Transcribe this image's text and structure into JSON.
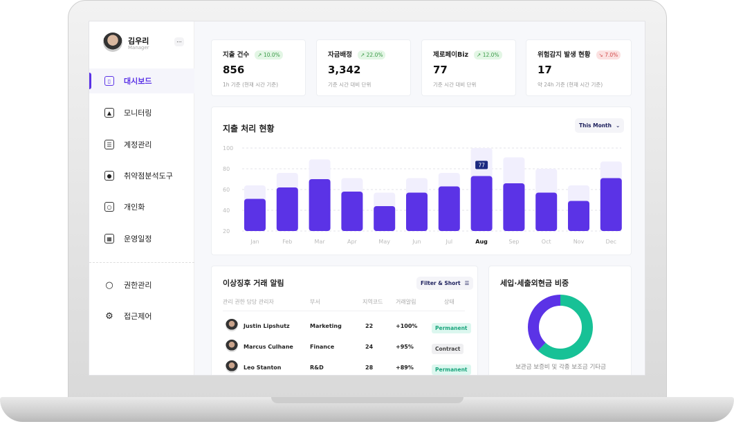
{
  "user": {
    "name": "김우리",
    "role": "Manager",
    "more": "..."
  },
  "sidebar": {
    "items": [
      {
        "label": "대시보드",
        "icon": "dashboard-icon",
        "active": true
      },
      {
        "label": "모니터링",
        "icon": "monitoring-icon"
      },
      {
        "label": "계정관리",
        "icon": "account-card-icon"
      },
      {
        "label": "취약점분석도구",
        "icon": "briefcase-icon"
      },
      {
        "label": "개인화",
        "icon": "user-square-icon"
      },
      {
        "label": "운영일정",
        "icon": "calendar-icon"
      },
      {
        "label": "권한관리",
        "icon": "user-icon"
      },
      {
        "label": "접근제어",
        "icon": "gear-icon"
      }
    ]
  },
  "kpis": [
    {
      "title": "지출 건수",
      "change": "10.0%",
      "trend": "up",
      "value": "856",
      "sub": "1h 기준 (현재 시간 기준)"
    },
    {
      "title": "자금배정",
      "change": "22.0%",
      "trend": "up",
      "value": "3,342",
      "sub": "기준 시간 대비 단위"
    },
    {
      "title": "제로페이Biz",
      "change": "12.0%",
      "trend": "up",
      "value": "77",
      "sub": "기준 시간 대비 단위"
    },
    {
      "title": "위험감지 발생 현황",
      "change": "7.0%",
      "trend": "down",
      "value": "17",
      "sub": "약 24h 기준 (현재 시간 기준)"
    }
  ],
  "colors": {
    "accent": "#5b33e6",
    "bar_bg": "#f1effd",
    "teal": "#17c196",
    "up": "#3a9b47",
    "down": "#d24b4b"
  },
  "chart_data": {
    "type": "bar",
    "title": "지출 처리 현황",
    "filter": "This Month",
    "categories": [
      "Jan",
      "Feb",
      "Mar",
      "Apr",
      "May",
      "Jun",
      "Jul",
      "Aug",
      "Sep",
      "Oct",
      "Nov",
      "Dec"
    ],
    "series": [
      {
        "values": [
          51,
          62,
          70,
          58,
          44,
          57,
          63,
          73,
          66,
          57,
          49,
          71
        ]
      },
      {
        "values": [
          64,
          76,
          89,
          71,
          57,
          71,
          76,
          100,
          91,
          80,
          64,
          87
        ]
      }
    ],
    "highlight": "Aug",
    "tooltip": "77",
    "yticks": [
      100,
      80,
      60,
      40,
      20
    ],
    "ylim": [
      20,
      100
    ],
    "grid": true
  },
  "alerts": {
    "title": "이상징후 거래 알림",
    "filter": "Filter & Short",
    "columns": [
      "관리 권한 담당 관리자",
      "부서",
      "지역코드",
      "거래알림",
      "상태"
    ],
    "rows": [
      {
        "name": "Justin Lipshutz",
        "dept": "Marketing",
        "code": "22",
        "change": "+100%",
        "status": "Permanent"
      },
      {
        "name": "Marcus Culhane",
        "dept": "Finance",
        "code": "24",
        "change": "+95%",
        "status": "Contract"
      },
      {
        "name": "Leo Stanton",
        "dept": "R&D",
        "code": "28",
        "change": "+89%",
        "status": "Permanent"
      }
    ]
  },
  "donut": {
    "title": "세입·세출외현금 비중",
    "legend": "보관금 보증비 및 각종 보조금 기타금",
    "segments": [
      {
        "value": 38,
        "color": "#5b33e6"
      },
      {
        "value": 62,
        "color": "#17c196"
      }
    ]
  }
}
